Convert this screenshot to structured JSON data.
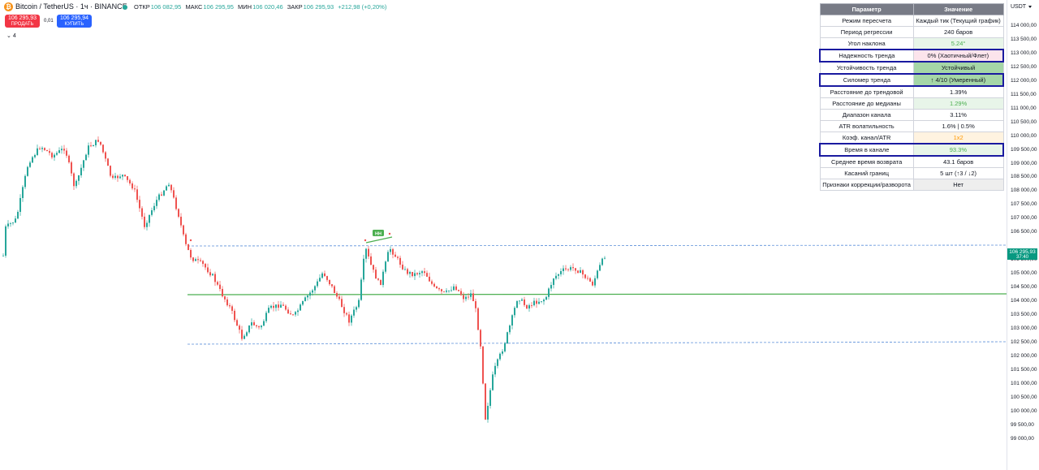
{
  "symbol": {
    "title": "Bitcoin / TetherUS · 1ч · BINANCE",
    "icon": "bitcoin-icon"
  },
  "ohlc": {
    "open_label": "ОТКР",
    "open": "106 082,95",
    "high_label": "МАКС",
    "high": "106 295,95",
    "low_label": "МИН",
    "low": "106 020,46",
    "close_label": "ЗАКР",
    "close": "106 295,93",
    "change": "+212,98 (+0,20%)"
  },
  "trade": {
    "sell_price": "106 295,93",
    "sell_label": "ПРОДАТЬ",
    "spread": "0,01",
    "buy_price": "106 295,94",
    "buy_label": "КУПИТЬ"
  },
  "indicators_toggle": "4",
  "price_axis": {
    "currency": "USDT",
    "ticks": [
      "114 000,00",
      "113 500,00",
      "113 000,00",
      "112 500,00",
      "112 000,00",
      "111 500,00",
      "111 000,00",
      "110 500,00",
      "110 000,00",
      "109 500,00",
      "109 000,00",
      "108 500,00",
      "108 000,00",
      "107 500,00",
      "107 000,00",
      "106 500,00",
      "105 500,00",
      "105 000,00",
      "104 500,00",
      "104 000,00",
      "103 500,00",
      "103 000,00",
      "102 500,00",
      "102 000,00",
      "101 500,00",
      "101 000,00",
      "100 500,00",
      "100 000,00",
      "99 500,00",
      "99 000,00"
    ],
    "last_price": "106 295,93",
    "countdown": "37:40"
  },
  "chart": {
    "marker_label": "HH",
    "colors": {
      "up": "#26a69a",
      "down": "#ef5350",
      "channel": "#5b8fd9",
      "median": "#4caf50"
    }
  },
  "table": {
    "headers": [
      "Параметр",
      "Значение"
    ],
    "rows": [
      {
        "param": "Режим пересчета",
        "value": "Каждый тик (Текущий график)",
        "bg": "#ffffff",
        "color": "#131722",
        "hl": false
      },
      {
        "param": "Период регрессии",
        "value": "240 баров",
        "bg": "#ffffff",
        "color": "#131722",
        "hl": false
      },
      {
        "param": "Угол наклона",
        "value": "5.24°",
        "bg": "#e8f5e9",
        "color": "#4caf50",
        "hl": false
      },
      {
        "param": "Надежность тренда",
        "value": "0% (Хаотичный/Флет)",
        "bg": "#fce4ec",
        "color": "#131722",
        "hl": true
      },
      {
        "param": "Устойчивость тренда",
        "value": "Устойчивый",
        "bg": "#a5d6a7",
        "color": "#131722",
        "hl": false
      },
      {
        "param": "Силомер тренда",
        "value": "↑ 4/10 (Умеренный)",
        "bg": "#a5d6a7",
        "color": "#131722",
        "hl": true
      },
      {
        "param": "Расстояние до трендовой",
        "value": "1.39%",
        "bg": "#ffffff",
        "color": "#131722",
        "hl": false
      },
      {
        "param": "Расстояние до медианы",
        "value": "1.29%",
        "bg": "#e8f5e9",
        "color": "#4caf50",
        "hl": false
      },
      {
        "param": "Диапазон канала",
        "value": "3.11%",
        "bg": "#ffffff",
        "color": "#131722",
        "hl": false
      },
      {
        "param": "ATR волатильность",
        "value": "1.6% | 0.5%",
        "bg": "#ffffff",
        "color": "#131722",
        "hl": false
      },
      {
        "param": "Коэф. канал/ATR",
        "value": "1x2",
        "bg": "#fff3e0",
        "color": "#ff9800",
        "hl": false
      },
      {
        "param": "Время в канале",
        "value": "93.3%",
        "bg": "#e8f5e9",
        "color": "#4caf50",
        "hl": true
      },
      {
        "param": "Среднее время возврата",
        "value": "43.1 баров",
        "bg": "#ffffff",
        "color": "#131722",
        "hl": false
      },
      {
        "param": "Касаний границ",
        "value": "5 шт (↑3 / ↓2)",
        "bg": "#ffffff",
        "color": "#131722",
        "hl": false
      },
      {
        "param": "Признаки коррекции/разворота",
        "value": "Нет",
        "bg": "#eeeeee",
        "color": "#131722",
        "hl": false
      }
    ]
  }
}
